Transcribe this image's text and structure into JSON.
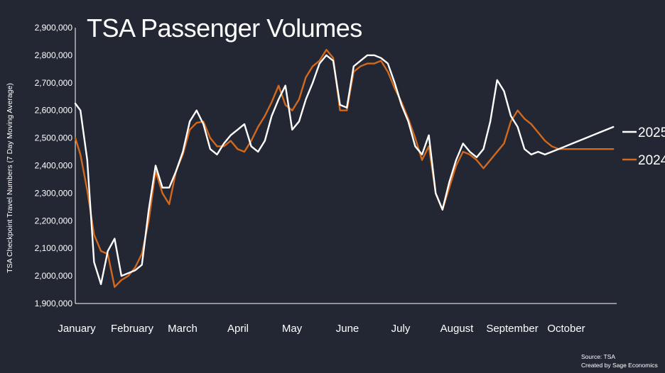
{
  "chart_data": {
    "type": "line",
    "title": "TSA Passenger Volumes",
    "ylabel": "TSA Checkpoint Travel Numbers (7 Day Moving Average)",
    "xlabel": "",
    "ylim": [
      1900000,
      2900000
    ],
    "yticks": [
      1900000,
      2000000,
      2100000,
      2200000,
      2300000,
      2400000,
      2500000,
      2600000,
      2700000,
      2800000,
      2900000
    ],
    "ytick_labels": [
      "1,900,000",
      "2,000,000",
      "2,100,000",
      "2,200,000",
      "2,300,000",
      "2,400,000",
      "2,500,000",
      "2,600,000",
      "2,700,000",
      "2,800,000",
      "2,900,000"
    ],
    "months": [
      "January",
      "February",
      "March",
      "April",
      "May",
      "June",
      "July",
      "August",
      "September",
      "October"
    ],
    "x_unit": "day of year",
    "xlim": [
      1,
      318
    ],
    "series": [
      {
        "name": "2025",
        "color": "#ffffff",
        "x": [
          1,
          4,
          8,
          12,
          16,
          20,
          24,
          28,
          32,
          36,
          40,
          44,
          48,
          52,
          56,
          60,
          64,
          68,
          72,
          76,
          80,
          84,
          88,
          92,
          96,
          100,
          104,
          108,
          112,
          116,
          120,
          124,
          128,
          132,
          136,
          140,
          144,
          148,
          152,
          156,
          160,
          164,
          168,
          172,
          176,
          180,
          184,
          188,
          192,
          196,
          200,
          204,
          208,
          212,
          216,
          220,
          224,
          228,
          232,
          236,
          240,
          244,
          248,
          252,
          256,
          260,
          264,
          268,
          272,
          276,
          280,
          284,
          288,
          292,
          296,
          300,
          304,
          308,
          312,
          316
        ],
        "y": [
          2625000,
          2600000,
          2420000,
          2050000,
          1970000,
          2090000,
          2135000,
          2000000,
          2010000,
          2020000,
          2040000,
          2240000,
          2400000,
          2320000,
          2320000,
          2380000,
          2450000,
          2560000,
          2600000,
          2550000,
          2460000,
          2440000,
          2480000,
          2510000,
          2530000,
          2550000,
          2470000,
          2450000,
          2490000,
          2580000,
          2640000,
          2690000,
          2530000,
          2560000,
          2640000,
          2700000,
          2770000,
          2800000,
          2780000,
          2620000,
          2610000,
          2760000,
          2780000,
          2800000,
          2800000,
          2790000,
          2770000,
          2700000,
          2620000,
          2560000,
          2470000,
          2440000,
          2510000,
          2300000,
          2240000,
          2340000,
          2420000,
          2480000,
          2450000,
          2430000,
          2460000,
          2560000,
          2710000,
          2670000,
          2580000,
          2540000,
          2460000,
          2440000,
          2450000,
          2440000,
          2450000,
          2460000,
          2470000,
          2480000,
          2490000,
          2500000,
          2510000,
          2520000,
          2530000,
          2540000
        ]
      },
      {
        "name": "2024",
        "color": "#d2691e",
        "x": [
          1,
          4,
          8,
          12,
          16,
          20,
          24,
          28,
          32,
          36,
          40,
          44,
          48,
          52,
          56,
          60,
          64,
          68,
          72,
          76,
          80,
          84,
          88,
          92,
          96,
          100,
          104,
          108,
          112,
          116,
          120,
          124,
          128,
          132,
          136,
          140,
          144,
          148,
          152,
          156,
          160,
          164,
          168,
          172,
          176,
          180,
          184,
          188,
          192,
          196,
          200,
          204,
          208,
          212,
          216,
          220,
          224,
          228,
          232,
          236,
          240,
          244,
          248,
          252,
          256,
          260,
          264,
          268,
          272,
          276,
          280,
          284,
          288,
          292,
          296,
          300,
          304,
          308,
          312,
          316
        ],
        "y": [
          2500000,
          2440000,
          2310000,
          2150000,
          2090000,
          2080000,
          1960000,
          1985000,
          2000000,
          2030000,
          2080000,
          2200000,
          2380000,
          2300000,
          2260000,
          2380000,
          2440000,
          2530000,
          2555000,
          2560000,
          2500000,
          2470000,
          2470000,
          2490000,
          2460000,
          2450000,
          2490000,
          2540000,
          2580000,
          2630000,
          2690000,
          2620000,
          2600000,
          2640000,
          2720000,
          2760000,
          2780000,
          2820000,
          2790000,
          2600000,
          2600000,
          2740000,
          2760000,
          2770000,
          2770000,
          2780000,
          2740000,
          2680000,
          2630000,
          2570000,
          2500000,
          2420000,
          2470000,
          2300000,
          2240000,
          2320000,
          2400000,
          2450000,
          2440000,
          2420000,
          2390000,
          2420000,
          2450000,
          2480000,
          2560000,
          2600000,
          2570000,
          2550000,
          2520000,
          2490000,
          2470000,
          2460000,
          2460000,
          2460000,
          2460000,
          2460000,
          2460000,
          2460000,
          2460000,
          2460000
        ]
      }
    ],
    "legend": [
      "2025",
      "2024"
    ],
    "grid": false,
    "annotations": [
      "Source: TSA",
      "Created by Sage Economics"
    ]
  }
}
